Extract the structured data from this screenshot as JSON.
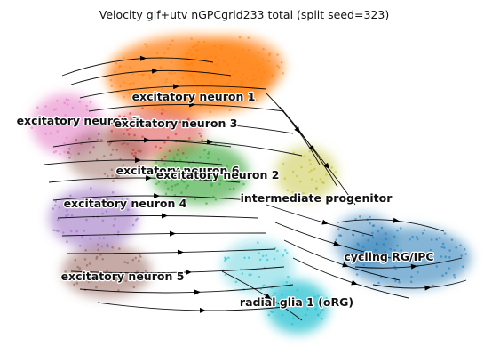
{
  "figure": {
    "title": "Velocity glf+utv nGPCgrid233 total (split seed=323)"
  },
  "clusters": [
    {
      "label": "excitatory neuron 1",
      "color": "#ff7f0e"
    },
    {
      "label": "excitatory neuron 7",
      "color": "#e377c2"
    },
    {
      "label": "excitatory neuron 3",
      "color": "#d62728"
    },
    {
      "label": "excitatory neuron 6",
      "color": "#8c564b"
    },
    {
      "label": "excitatory neuron 2",
      "color": "#2ca02c"
    },
    {
      "label": "intermediate progenitor",
      "color": "#bcbd22"
    },
    {
      "label": "excitatory neuron 4",
      "color": "#9467bd"
    },
    {
      "label": "cycling RG/IPC",
      "color": "#1f77b4"
    },
    {
      "label": "excitatory neuron 5",
      "color": "#8c564b"
    },
    {
      "label": "radial glia 1 (oRG)",
      "color": "#17becf"
    }
  ],
  "style": {
    "stream_color": "#000000"
  }
}
